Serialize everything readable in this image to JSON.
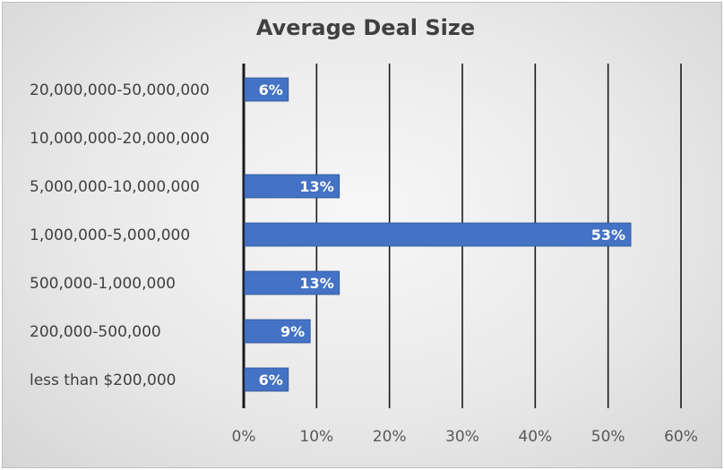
{
  "chart_data": {
    "type": "bar",
    "orientation": "horizontal",
    "title": "Average Deal Size",
    "xlabel": "",
    "ylabel": "",
    "categories": [
      "20,000,000-50,000,000",
      "10,000,000-20,000,000",
      "5,000,000-10,000,000",
      "1,000,000-5,000,000",
      "500,000-1,000,000",
      "200,000-500,000",
      "less than $200,000"
    ],
    "values": [
      6,
      0,
      13,
      53,
      13,
      9,
      6
    ],
    "data_labels": [
      "6%",
      "",
      "13%",
      "53%",
      "13%",
      "9%",
      "6%"
    ],
    "xlim": [
      0,
      60
    ],
    "x_ticks": [
      0,
      10,
      20,
      30,
      40,
      50,
      60
    ],
    "x_tick_labels": [
      "0%",
      "10%",
      "20%",
      "30%",
      "40%",
      "50%",
      "60%"
    ],
    "grid": "vertical",
    "legend": "none",
    "colors": {
      "bar": "#4472c4",
      "bar_edge": "#2f5597",
      "gridline": "#1a1a1a",
      "title": "#404040",
      "text": "#404040"
    }
  }
}
